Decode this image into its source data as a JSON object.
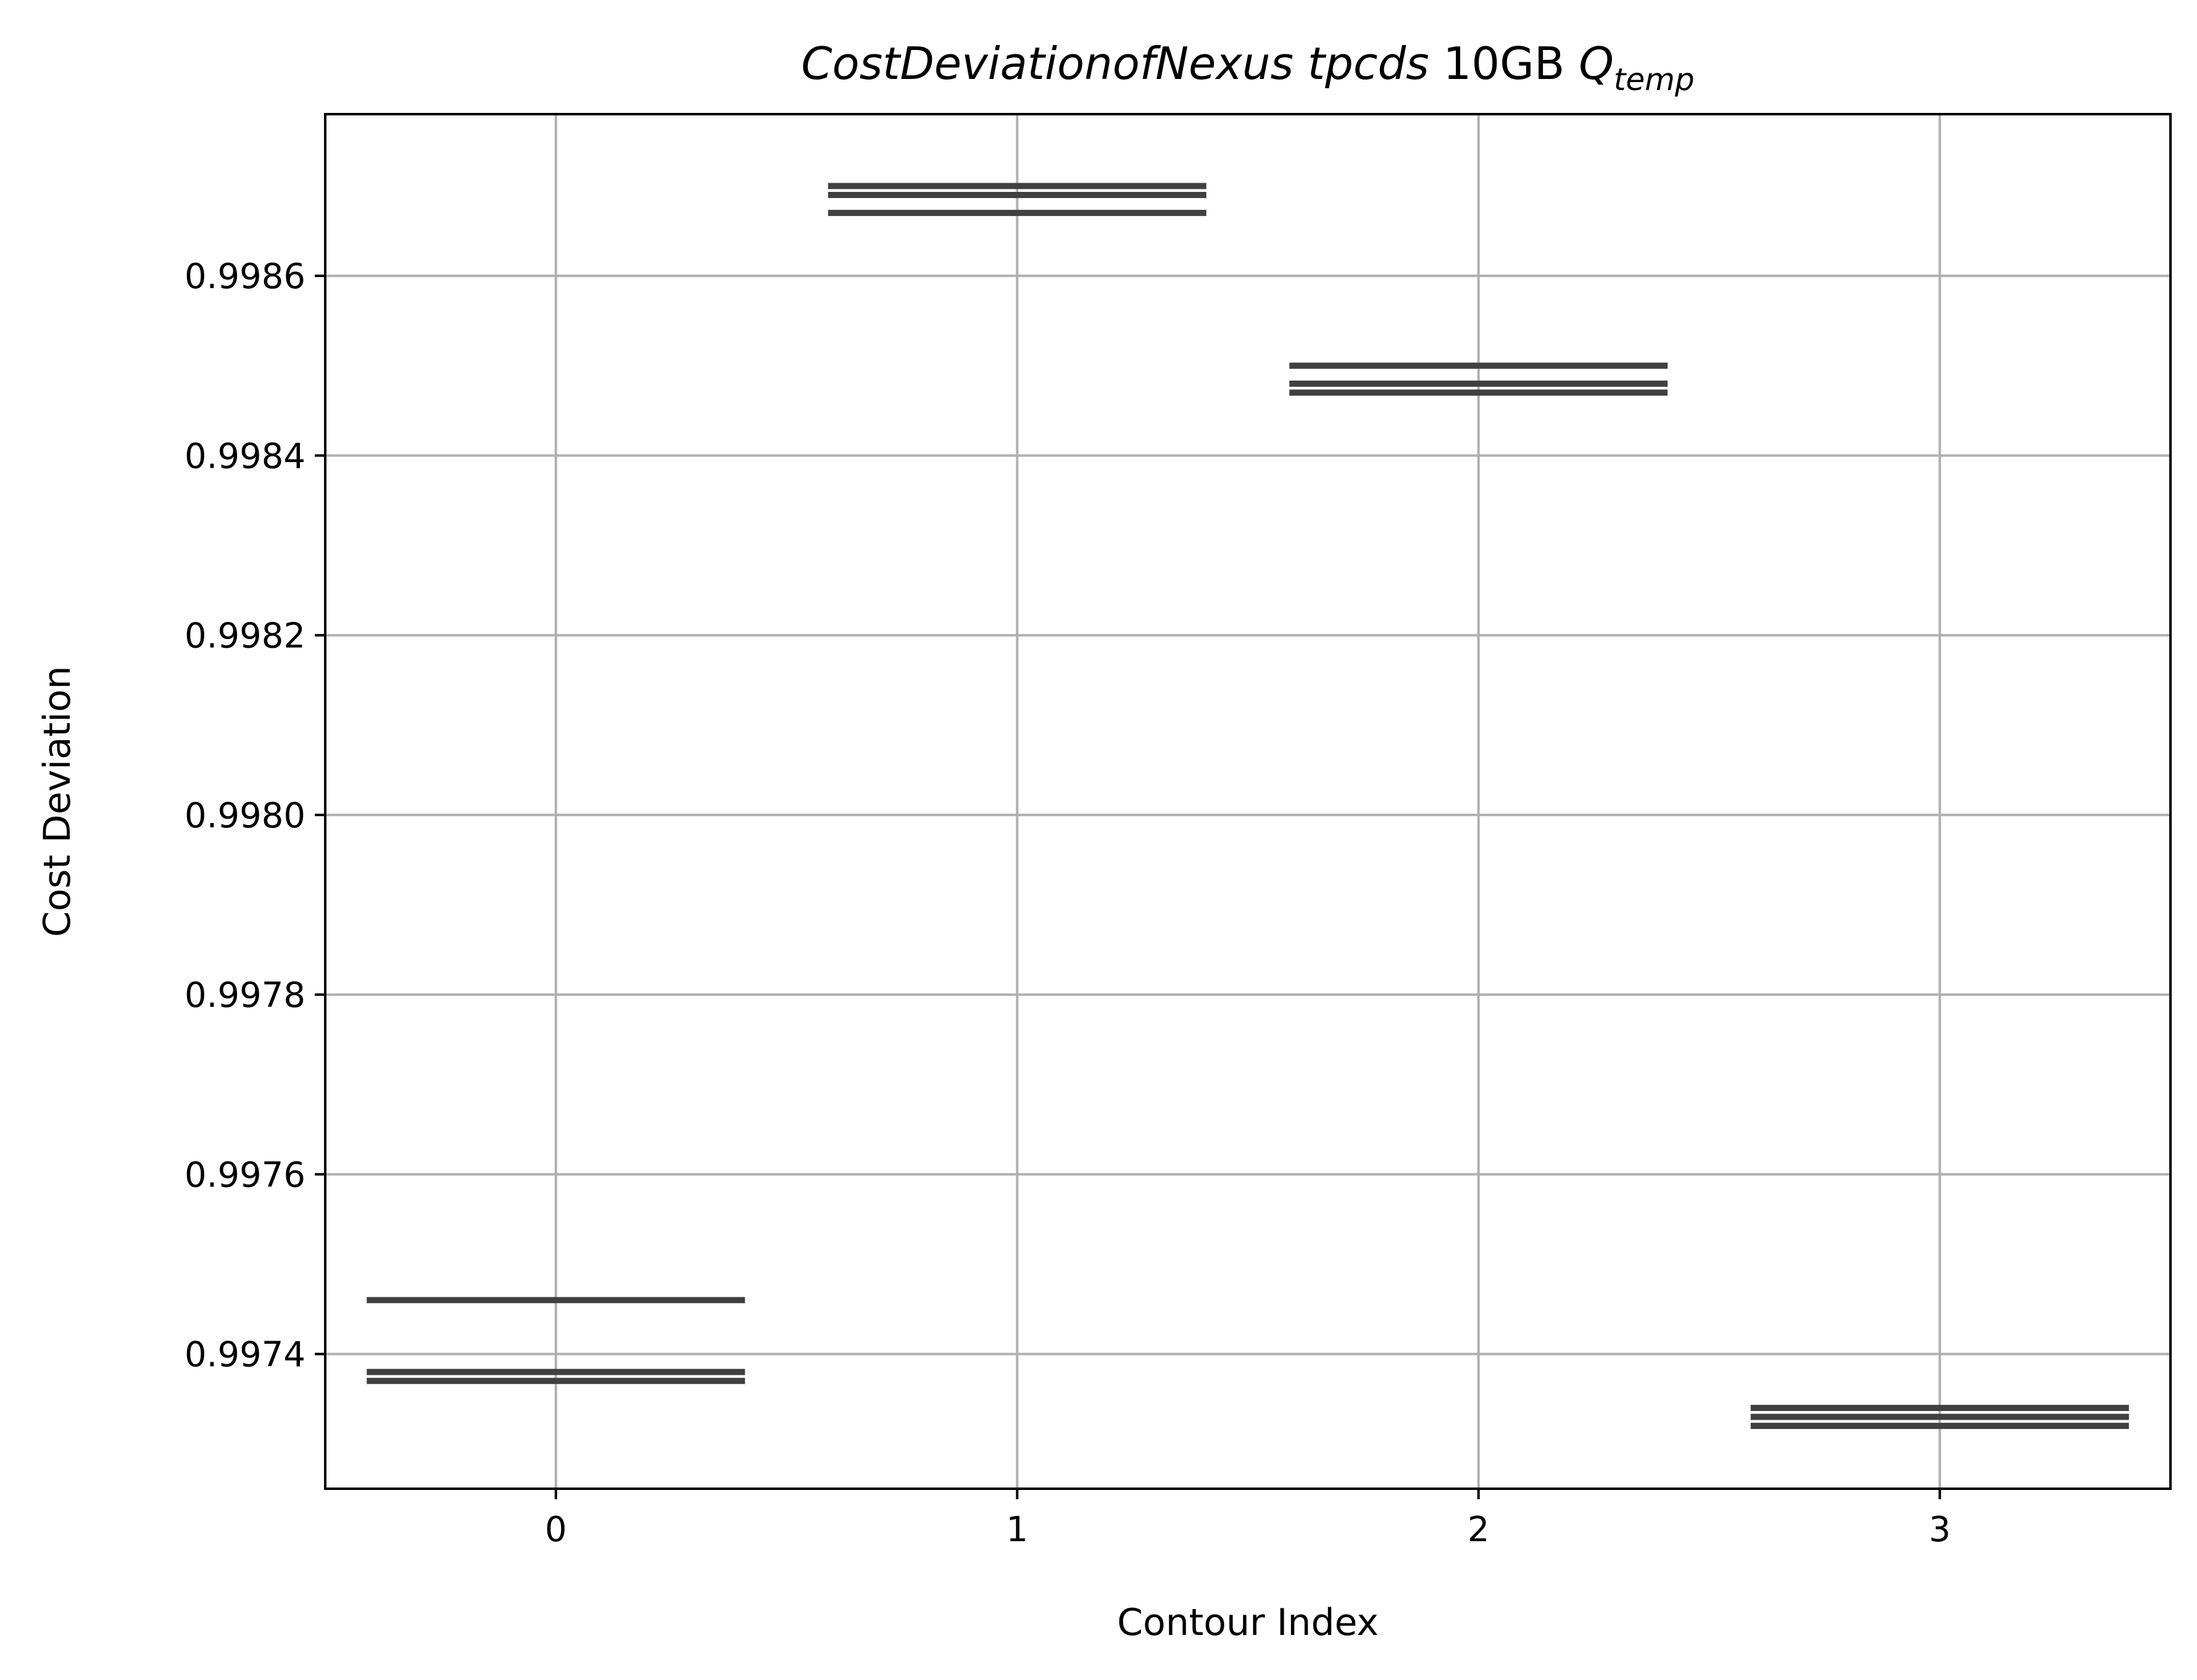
{
  "chart_data": {
    "type": "line",
    "title": {
      "main": "CostDeviationofNexus tpcds",
      "mid": "10GB",
      "q": "Q",
      "sub": "temp"
    },
    "xlabel": "Contour Index",
    "ylabel": "Cost Deviation",
    "x_ticks": [
      "0",
      "1",
      "2",
      "3"
    ],
    "y_ticks": [
      "0.9974",
      "0.9976",
      "0.9978",
      "0.9980",
      "0.9982",
      "0.9984",
      "0.9986"
    ],
    "xlim": [
      -0.5,
      3.5
    ],
    "ylim": [
      0.99725,
      0.99878
    ],
    "grid": true,
    "segment_half_width": 0.41,
    "colors": {
      "segment": "#404040",
      "grid": "#b0b0b0",
      "axes": "#000000"
    },
    "series": [
      {
        "x": 0,
        "values": [
          0.99746,
          0.99738,
          0.99737
        ]
      },
      {
        "x": 1,
        "values": [
          0.9987,
          0.99869,
          0.99867
        ]
      },
      {
        "x": 2,
        "values": [
          0.9985,
          0.99848,
          0.99847
        ]
      },
      {
        "x": 3,
        "values": [
          0.99734,
          0.99733,
          0.99732
        ]
      }
    ]
  }
}
